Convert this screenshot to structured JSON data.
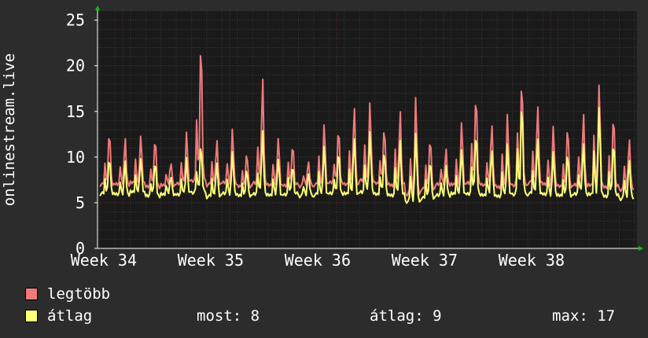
{
  "colors": {
    "background": "#2c2c2c",
    "plot_background": "#1a1a1a",
    "series_max": "#ee7a7a",
    "series_avg": "#ffff7a",
    "grid_major": "#5a3434",
    "grid_minor": "#3a3a3a",
    "axis": "#ffffff",
    "axis_arrow": "#00cc00"
  },
  "legend": {
    "items": [
      {
        "label": "legtöbb",
        "color": "#ee7a7a"
      },
      {
        "label": "átlag",
        "color": "#ffff7a"
      }
    ],
    "stats": {
      "most": "most: 8",
      "atlag": "átlag: 9",
      "max": "max: 17"
    }
  },
  "chart_data": {
    "type": "line",
    "ylabel": "onlinestream.live",
    "ylim": [
      0,
      26
    ],
    "yticks": [
      0,
      5,
      10,
      15,
      20,
      25
    ],
    "x_tick_labels": [
      "Week 34",
      "Week 35",
      "Week 36",
      "Week 37",
      "Week 38"
    ],
    "grid": true,
    "days": 35,
    "samples_per_day": 12,
    "daily_peaks": {
      "max": [
        13.2,
        12.0,
        12.5,
        12.3,
        9.5,
        12.8,
        23.5,
        12.0,
        13.0,
        10.5,
        18.8,
        12.3,
        11.7,
        9.8,
        13.7,
        13.3,
        15.7,
        16.0,
        13.5,
        15.2,
        17.0,
        12.5,
        10.8,
        14.0,
        17.3,
        13.8,
        14.8,
        19.0,
        15.8,
        13.3,
        13.5,
        14.8,
        18.3,
        15.0,
        12.3
      ],
      "avg": [
        10.3,
        9.5,
        10.0,
        9.7,
        8.0,
        10.0,
        11.7,
        9.5,
        10.5,
        8.7,
        13.0,
        10.0,
        9.3,
        8.5,
        11.3,
        10.8,
        12.3,
        12.8,
        10.8,
        12.0,
        13.0,
        10.0,
        9.0,
        11.0,
        13.0,
        11.0,
        11.5,
        16.5,
        12.2,
        10.5,
        10.5,
        11.5,
        15.8,
        12.0,
        10.0
      ]
    },
    "daily_mins": {
      "max": [
        7.0,
        7.0,
        7.2,
        6.8,
        7.0,
        7.2,
        7.5,
        7.0,
        7.2,
        6.8,
        7.2,
        7.0,
        7.0,
        6.9,
        7.0,
        7.2,
        7.0,
        7.5,
        7.2,
        7.0,
        6.0,
        6.5,
        7.0,
        7.0,
        7.2,
        7.0,
        6.8,
        7.0,
        7.2,
        7.0,
        6.8,
        7.0,
        7.0,
        6.8,
        6.5
      ],
      "avg": [
        6.0,
        5.9,
        6.2,
        5.8,
        6.0,
        6.0,
        6.2,
        5.7,
        6.0,
        5.8,
        6.0,
        5.9,
        6.0,
        5.8,
        5.9,
        6.0,
        6.0,
        6.2,
        6.0,
        5.9,
        5.2,
        5.5,
        5.8,
        6.0,
        6.0,
        5.9,
        5.8,
        6.0,
        6.0,
        5.9,
        5.8,
        6.0,
        6.0,
        5.8,
        5.5
      ]
    },
    "series": [
      {
        "name": "legtöbb",
        "key": "max",
        "color": "#ee7a7a"
      },
      {
        "name": "átlag",
        "key": "avg",
        "color": "#ffff7a"
      }
    ]
  }
}
